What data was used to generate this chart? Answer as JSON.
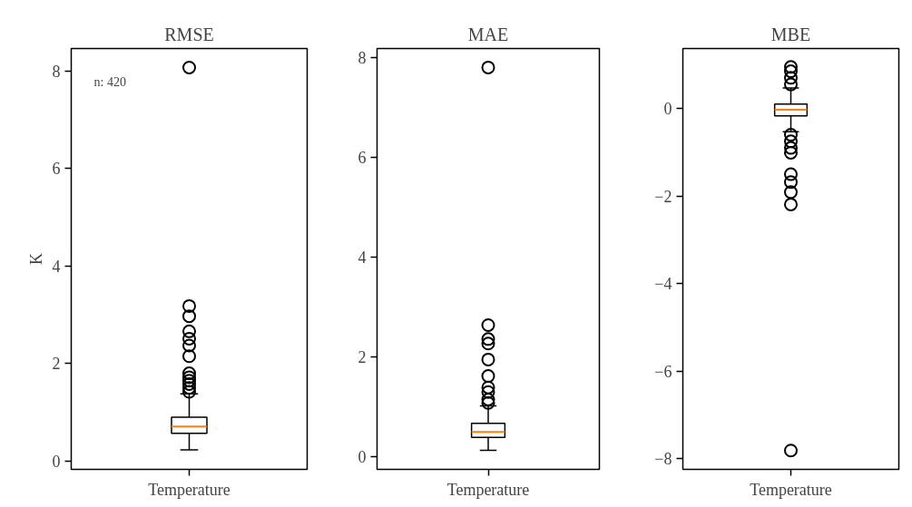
{
  "chart_data": [
    {
      "type": "box",
      "title": "RMSE",
      "ylabel": "K",
      "categories": [
        "Temperature"
      ],
      "ylim": [
        -0.17,
        8.46
      ],
      "yticks": [
        0,
        2,
        4,
        6,
        8
      ],
      "grid": false,
      "annotations": [
        "n: 420"
      ],
      "boxes": [
        {
          "low": 0.23,
          "q1": 0.57,
          "median": 0.71,
          "q3": 0.9,
          "high": 1.38,
          "outliers": [
            1.42,
            1.5,
            1.58,
            1.65,
            1.72,
            1.8,
            2.15,
            2.37,
            2.51,
            2.66,
            2.97,
            3.18,
            8.07
          ]
        }
      ]
    },
    {
      "type": "box",
      "title": "MAE",
      "categories": [
        "Temperature"
      ],
      "ylim": [
        -0.25,
        8.18
      ],
      "yticks": [
        0,
        2,
        4,
        6,
        8
      ],
      "grid": false,
      "boxes": [
        {
          "low": 0.13,
          "q1": 0.39,
          "median": 0.5,
          "q3": 0.67,
          "high": 1.02,
          "outliers": [
            1.08,
            1.15,
            1.3,
            1.39,
            1.62,
            1.95,
            2.27,
            2.36,
            2.64,
            7.8
          ]
        }
      ]
    },
    {
      "type": "box",
      "title": "MBE",
      "categories": [
        "Temperature"
      ],
      "ylim": [
        -8.24,
        1.37
      ],
      "yticks": [
        {
          "value": -8,
          "label": "−8"
        },
        {
          "value": -6,
          "label": "−6"
        },
        {
          "value": -4,
          "label": "−4"
        },
        {
          "value": -2,
          "label": "−2"
        },
        0
      ],
      "grid": false,
      "boxes": [
        {
          "low": -0.53,
          "q1": -0.17,
          "median": -0.03,
          "q3": 0.1,
          "high": 0.47,
          "outliers": [
            0.55,
            0.7,
            0.85,
            0.95,
            -0.6,
            -0.75,
            -0.9,
            -1.01,
            -1.5,
            -1.68,
            -1.91,
            -2.19,
            -7.81
          ]
        }
      ]
    }
  ]
}
